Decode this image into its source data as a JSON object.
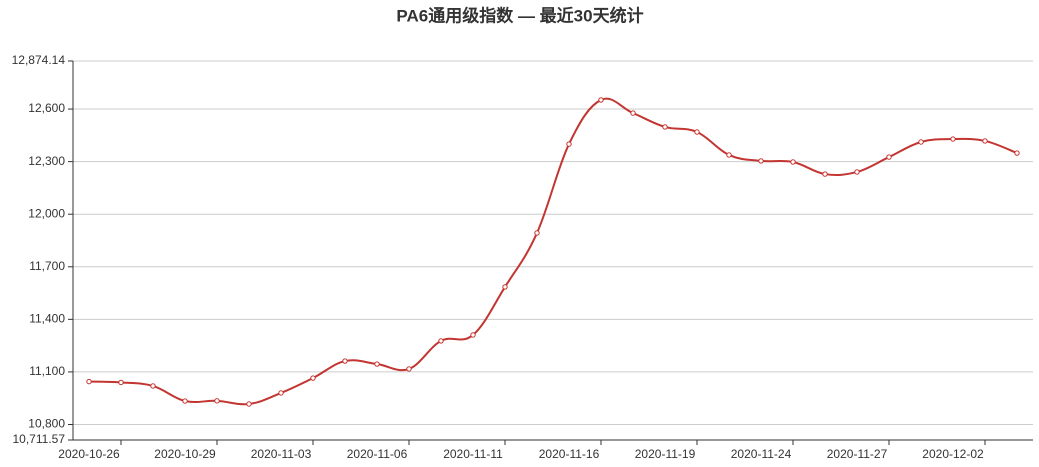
{
  "chart_data": {
    "type": "line",
    "title": "PA6通用级指数   —   最近30天统计",
    "categories": [
      "2020-10-26",
      null,
      null,
      "2020-10-29",
      null,
      null,
      "2020-11-03",
      null,
      null,
      "2020-11-06",
      null,
      null,
      "2020-11-11",
      null,
      null,
      "2020-11-16",
      null,
      null,
      "2020-11-19",
      null,
      null,
      "2020-11-24",
      null,
      null,
      "2020-11-27",
      null,
      null,
      "2020-12-02",
      null,
      null
    ],
    "series": [
      {
        "name": "PA6通用级指数",
        "color": "#c23531",
        "values": [
          11045,
          11040,
          11020,
          10934,
          10935,
          10917,
          10980,
          11065,
          11162,
          11145,
          11117,
          11277,
          11311,
          11585,
          11893,
          12400,
          12652,
          12577,
          12498,
          12469,
          12338,
          12304,
          12298,
          12229,
          12241,
          12326,
          12412,
          12429,
          12418,
          12349
        ]
      }
    ],
    "ylim": [
      10711.57,
      12874.14
    ],
    "yticks": [
      {
        "value": 10711.57,
        "label": "10,711.57"
      },
      {
        "value": 10800,
        "label": "10,800"
      },
      {
        "value": 11100,
        "label": "11,100"
      },
      {
        "value": 11400,
        "label": "11,400"
      },
      {
        "value": 11700,
        "label": "11,700"
      },
      {
        "value": 12000,
        "label": "12,000"
      },
      {
        "value": 12300,
        "label": "12,300"
      },
      {
        "value": 12600,
        "label": "12,600"
      },
      {
        "value": 12874.14,
        "label": "12,874.14"
      }
    ],
    "grid": true
  }
}
